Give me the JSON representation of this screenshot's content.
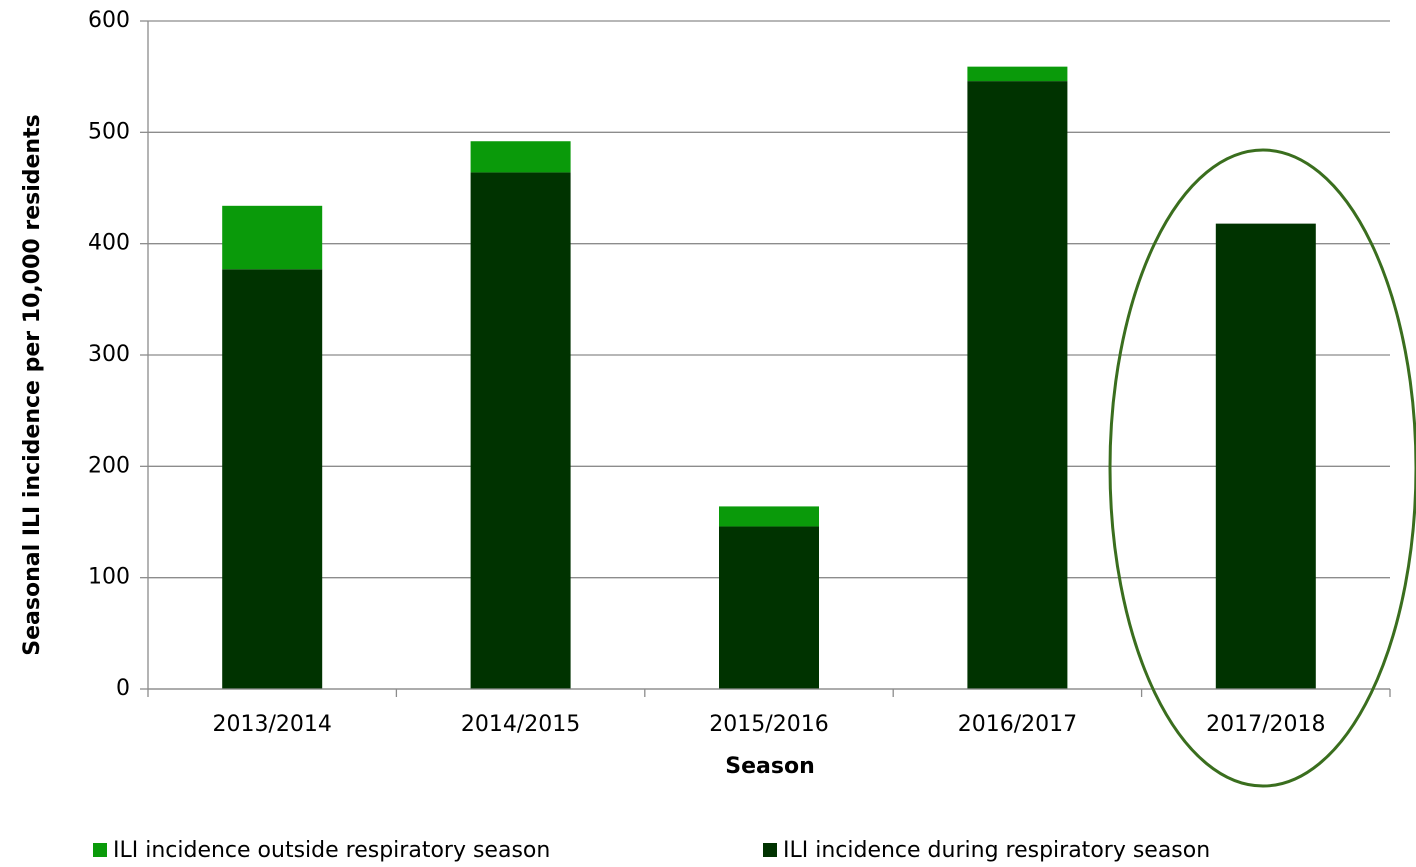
{
  "chart_data": {
    "type": "stacked_bar",
    "x_label": "Season",
    "y_label": "Seasonal ILI incidence per 10,000 residents",
    "categories": [
      "2013/2014",
      "2014/2015",
      "2015/2016",
      "2016/2017",
      "2017/2018"
    ],
    "series": [
      {
        "name": "ILI incidence outside respiratory season",
        "color": "#0a9a0a",
        "values": [
          57,
          28,
          18,
          13,
          0
        ]
      },
      {
        "name": "ILI incidence during respiratory season",
        "color": "#003300",
        "values": [
          377,
          464,
          146,
          546,
          418
        ]
      }
    ],
    "ylim": [
      0,
      600
    ],
    "yticks": [
      0,
      100,
      200,
      300,
      400,
      500,
      600
    ],
    "grid": true
  }
}
